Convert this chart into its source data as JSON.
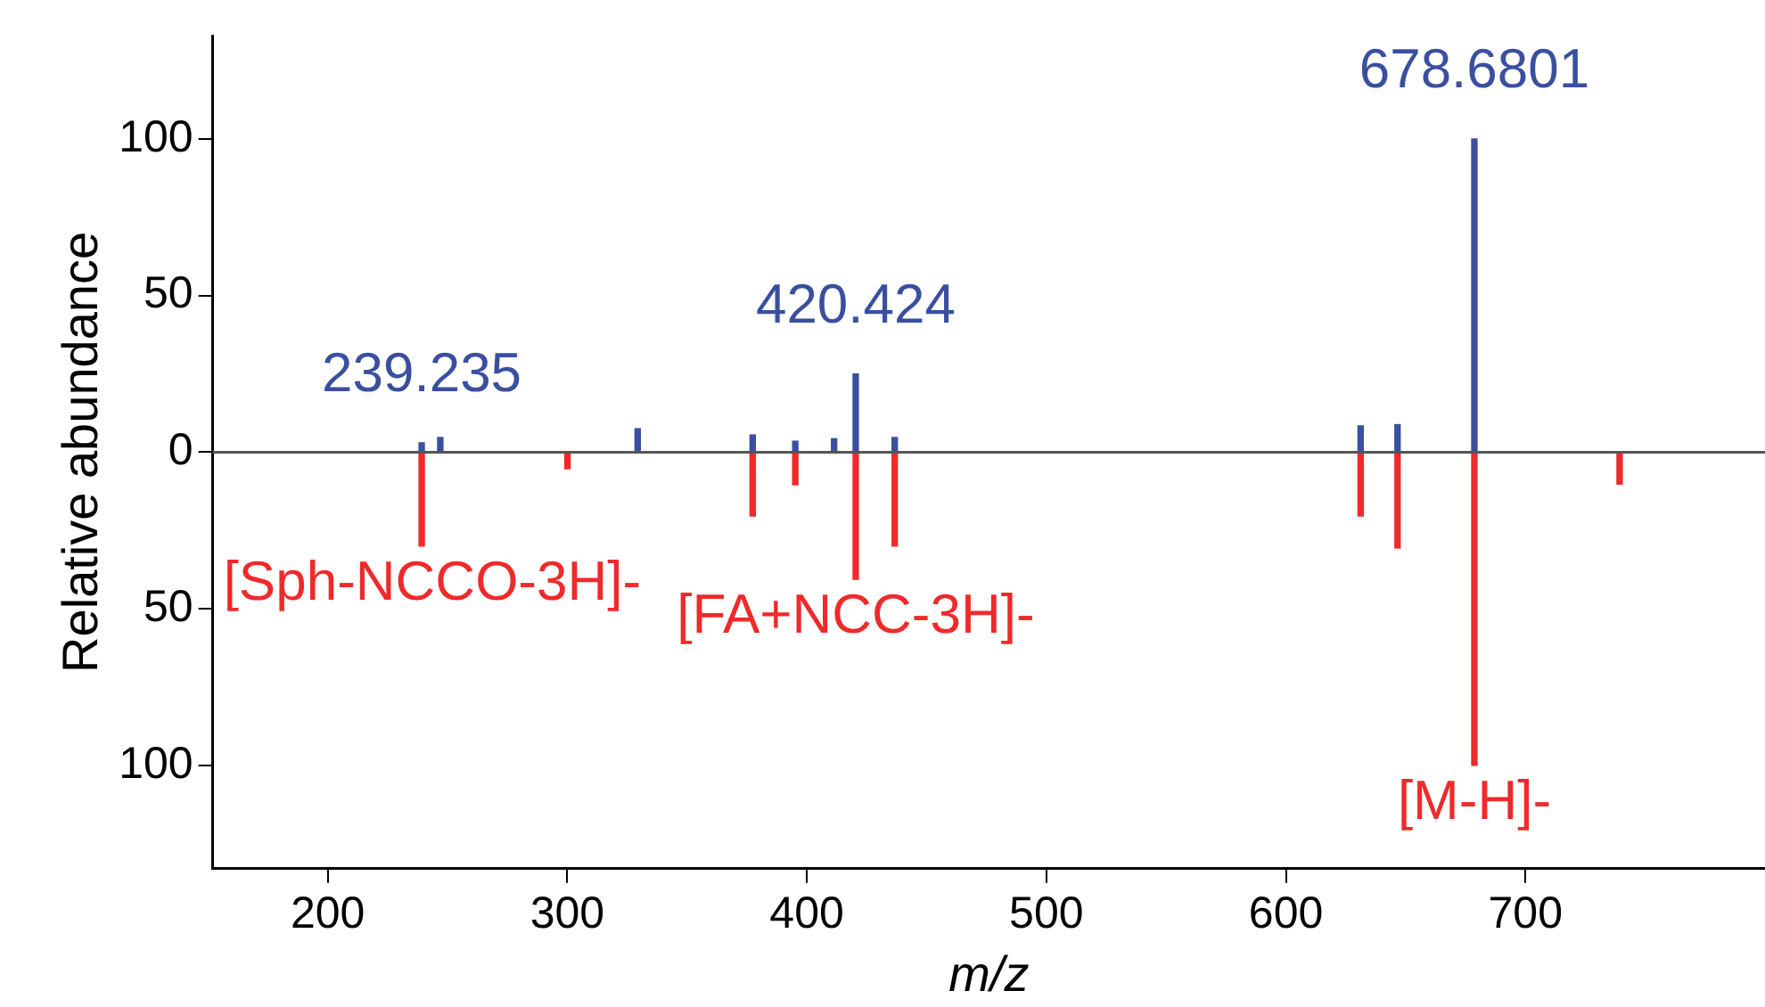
{
  "chart_data": {
    "type": "bar",
    "xlabel": "m/z",
    "ylabel": "Relative abundance",
    "xlim": [
      152,
      800
    ],
    "xticks": [
      200,
      300,
      400,
      500,
      600,
      700
    ],
    "ylim": [
      -133,
      133
    ],
    "yticks": [
      {
        "value": -100,
        "label": "100"
      },
      {
        "value": -50,
        "label": "50"
      },
      0,
      50,
      100
    ],
    "grid": false,
    "legend": false,
    "ref_lines": [
      {
        "axis": "y",
        "value": 0,
        "color": "#555555"
      }
    ],
    "series": [
      {
        "color": "#3a4fa0",
        "x": [
          239.235,
          247,
          329.4,
          377.4,
          395.2,
          411.4,
          420.424,
          436.7,
          631.2,
          646.6,
          678.6801
        ],
        "values": [
          3,
          4.7,
          7.5,
          5.5,
          3.5,
          4.3,
          25,
          4.7,
          8.4,
          8.8,
          100
        ]
      },
      {
        "color": "#ee2a2a",
        "x": [
          239.235,
          300.1,
          377.4,
          395.2,
          420.424,
          436.7,
          631.2,
          646.6,
          678.6801,
          739.3
        ],
        "values": [
          -30,
          -5.3,
          -20.4,
          -10.4,
          -40.6,
          -30,
          -20.4,
          -30.6,
          -100,
          -10.2
        ]
      }
    ],
    "annotations": [
      {
        "text": "239.235",
        "x": 239.235,
        "y": 3
      },
      {
        "text": "420.424",
        "x": 420.424,
        "y": 25
      },
      {
        "text": "678.6801",
        "x": 678.6801,
        "y": 100
      },
      {
        "text": "[Sph-NCCO-3H]-",
        "x": 239.235,
        "y": -30
      },
      {
        "text": "[FA+NCC-3H]-",
        "x": 420.424,
        "y": -40.6
      },
      {
        "text": "[M-H]-",
        "x": 678.6801,
        "y": -100
      }
    ]
  }
}
